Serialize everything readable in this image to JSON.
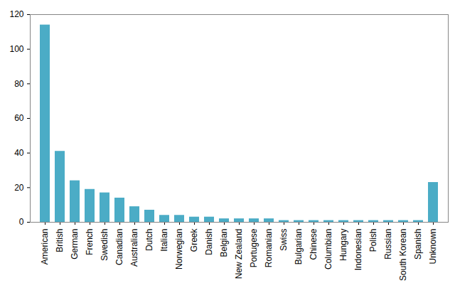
{
  "chart_data": {
    "type": "bar",
    "categories": [
      "American",
      "British",
      "German",
      "French",
      "Swedish",
      "Canadian",
      "Australian",
      "Dutch",
      "Italian",
      "Norwegian",
      "Greek",
      "Danish",
      "Belgian",
      "New Zealand",
      "Portugese",
      "Romanian",
      "Swiss",
      "Bulgarian",
      "Chinese",
      "Columbian",
      "Hungary",
      "Indonesian",
      "Polish",
      "Russian",
      "South Korean",
      "Spanish",
      "Unknown"
    ],
    "values": [
      114,
      41,
      24,
      19,
      17,
      14,
      9,
      7,
      4,
      4,
      3,
      3,
      2,
      2,
      2,
      2,
      1,
      1,
      1,
      1,
      1,
      1,
      1,
      1,
      1,
      1,
      23
    ],
    "color": "#4bacc6",
    "ylim": [
      0,
      120
    ],
    "yticks": [
      0,
      20,
      40,
      60,
      80,
      100,
      120
    ],
    "grid": false
  }
}
